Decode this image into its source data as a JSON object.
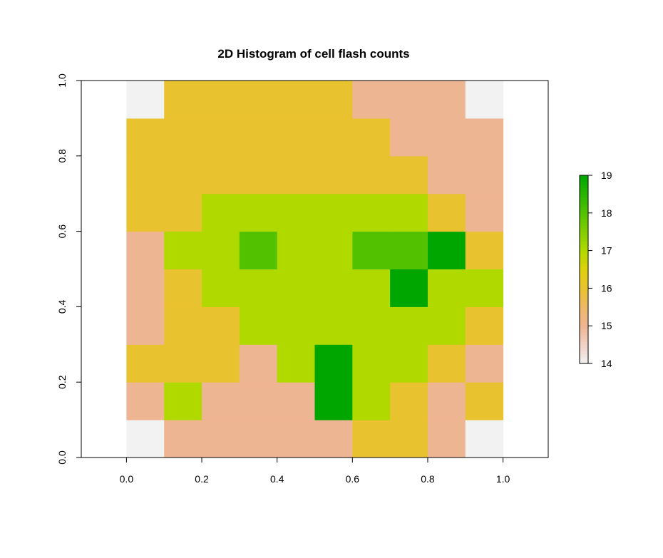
{
  "chart_data": {
    "type": "heatmap",
    "title": "2D Histogram of cell flash counts",
    "xlabel": "",
    "ylabel": "",
    "xlim": [
      -0.12,
      1.12
    ],
    "ylim": [
      0.0,
      1.0
    ],
    "x_ticks": [
      "0.0",
      "0.2",
      "0.4",
      "0.6",
      "0.8",
      "1.0"
    ],
    "y_ticks": [
      "0.0",
      "0.2",
      "0.4",
      "0.6",
      "0.8",
      "1.0"
    ],
    "x_edges": [
      0.0,
      0.1,
      0.2,
      0.3,
      0.4,
      0.5,
      0.6,
      0.7,
      0.8,
      0.9,
      1.0
    ],
    "y_edges": [
      0.0,
      0.1,
      0.2,
      0.3,
      0.4,
      0.5,
      0.6,
      0.7,
      0.8,
      0.9,
      1.0
    ],
    "grid": false,
    "cells_note_rows_from_bottom": true,
    "values": [
      [
        14,
        15,
        15,
        15,
        15,
        15,
        16,
        16,
        15,
        14
      ],
      [
        15,
        17,
        15,
        15,
        15,
        19,
        17,
        16,
        15,
        16
      ],
      [
        16,
        16,
        16,
        15,
        17,
        19,
        17,
        17,
        16,
        15
      ],
      [
        15,
        16,
        16,
        17,
        17,
        17,
        17,
        17,
        17,
        16
      ],
      [
        15,
        16,
        17,
        17,
        17,
        17,
        17,
        19,
        17,
        17
      ],
      [
        15,
        17,
        17,
        18,
        17,
        17,
        18,
        18,
        19,
        16
      ],
      [
        16,
        16,
        17,
        17,
        17,
        17,
        17,
        17,
        16,
        15
      ],
      [
        16,
        16,
        16,
        16,
        16,
        16,
        16,
        16,
        15,
        15
      ],
      [
        16,
        16,
        16,
        16,
        16,
        16,
        16,
        15,
        15,
        15
      ],
      [
        14,
        16,
        16,
        16,
        16,
        16,
        15,
        15,
        15,
        14
      ]
    ],
    "colorbar": {
      "min": 14,
      "max": 19,
      "ticks": [
        "14",
        "15",
        "16",
        "17",
        "18",
        "19"
      ]
    },
    "palette": {
      "14": "#f2f2f2",
      "15": "#eeb592",
      "16": "#e9c32f",
      "17": "#b0d900",
      "18": "#52c200",
      "19": "#00a600"
    }
  }
}
